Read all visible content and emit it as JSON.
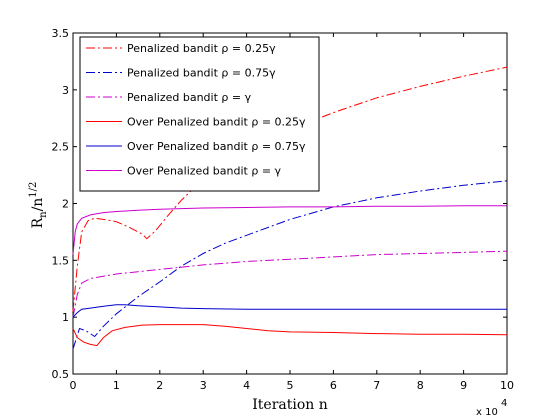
{
  "chart_data": {
    "type": "line",
    "xlabel": "Iteration n",
    "ylabel": "R_n / n^(1/2)",
    "x_multiplier_label": "x 10",
    "x_multiplier_exponent": "4",
    "xlim": [
      0,
      10
    ],
    "ylim": [
      0.5,
      3.5
    ],
    "xticks": [
      "0",
      "1",
      "2",
      "3",
      "4",
      "5",
      "6",
      "7",
      "8",
      "9",
      "10"
    ],
    "yticks": [
      "0.5",
      "1",
      "1.5",
      "2",
      "2.5",
      "3",
      "3.5"
    ],
    "grid": false,
    "legend_position": "top-left",
    "series": [
      {
        "name": "Penalized bandit ρ = 0.25γ",
        "color": "#ff0000",
        "dash": "dashdot",
        "x": [
          0,
          0.1,
          0.2,
          0.35,
          0.5,
          0.7,
          1.0,
          1.3,
          1.6,
          1.7,
          1.9,
          2.2,
          2.5,
          2.8,
          3.0,
          3.5,
          4.0,
          5.0,
          6.0,
          7.0,
          8.0,
          9.0,
          10.0
        ],
        "y": [
          1.05,
          1.45,
          1.75,
          1.85,
          1.87,
          1.86,
          1.84,
          1.79,
          1.73,
          1.69,
          1.76,
          1.9,
          2.03,
          2.14,
          2.22,
          2.33,
          2.45,
          2.65,
          2.8,
          2.93,
          3.03,
          3.12,
          3.2
        ]
      },
      {
        "name": "Penalized bandit ρ = 0.75γ",
        "color": "#0000cc",
        "dash": "dashdot",
        "x": [
          0,
          0.15,
          0.3,
          0.5,
          0.7,
          1.0,
          1.5,
          2.0,
          2.5,
          3.0,
          3.5,
          4.0,
          5.0,
          6.0,
          7.0,
          8.0,
          9.0,
          10.0
        ],
        "y": [
          0.72,
          0.9,
          0.88,
          0.83,
          0.92,
          1.03,
          1.18,
          1.31,
          1.45,
          1.56,
          1.65,
          1.72,
          1.86,
          1.97,
          2.05,
          2.11,
          2.16,
          2.2
        ]
      },
      {
        "name": "Penalized bandit ρ = γ",
        "color": "#cc00cc",
        "dash": "dashdot",
        "x": [
          0,
          0.1,
          0.2,
          0.4,
          0.7,
          1.0,
          1.5,
          2.0,
          3.0,
          4.0,
          5.0,
          6.0,
          7.0,
          8.0,
          9.0,
          10.0
        ],
        "y": [
          1.0,
          1.2,
          1.3,
          1.34,
          1.36,
          1.38,
          1.4,
          1.42,
          1.46,
          1.49,
          1.51,
          1.53,
          1.55,
          1.56,
          1.57,
          1.58
        ]
      },
      {
        "name": "Over Penalized bandit ρ = 0.25γ",
        "color": "#ff0000",
        "dash": "solid",
        "x": [
          0,
          0.1,
          0.25,
          0.4,
          0.55,
          0.7,
          0.9,
          1.2,
          1.6,
          2.0,
          2.5,
          3.0,
          3.5,
          4.0,
          4.5,
          5.0,
          6.0,
          7.0,
          8.0,
          9.0,
          10.0
        ],
        "y": [
          0.9,
          0.82,
          0.78,
          0.76,
          0.75,
          0.82,
          0.88,
          0.91,
          0.93,
          0.935,
          0.935,
          0.935,
          0.92,
          0.9,
          0.88,
          0.87,
          0.865,
          0.855,
          0.85,
          0.85,
          0.845
        ]
      },
      {
        "name": "Over Penalized bandit ρ = 0.75γ",
        "color": "#0000cc",
        "dash": "solid",
        "x": [
          0,
          0.1,
          0.2,
          0.4,
          0.6,
          0.8,
          1.0,
          1.2,
          1.5,
          2.0,
          2.5,
          3.0,
          4.0,
          5.0,
          6.0,
          7.0,
          8.0,
          9.0,
          10.0
        ],
        "y": [
          1.0,
          1.04,
          1.07,
          1.08,
          1.09,
          1.1,
          1.11,
          1.11,
          1.1,
          1.09,
          1.08,
          1.075,
          1.07,
          1.07,
          1.07,
          1.07,
          1.07,
          1.07,
          1.07
        ]
      },
      {
        "name": "Over Penalized bandit ρ = γ",
        "color": "#cc00cc",
        "dash": "solid",
        "x": [
          0,
          0.05,
          0.1,
          0.2,
          0.4,
          0.7,
          1.0,
          1.5,
          2.0,
          3.0,
          4.0,
          5.0,
          6.0,
          7.0,
          8.0,
          9.0,
          10.0
        ],
        "y": [
          1.55,
          1.75,
          1.82,
          1.87,
          1.9,
          1.92,
          1.93,
          1.94,
          1.95,
          1.96,
          1.965,
          1.97,
          1.97,
          1.975,
          1.975,
          1.98,
          1.98
        ]
      }
    ]
  }
}
